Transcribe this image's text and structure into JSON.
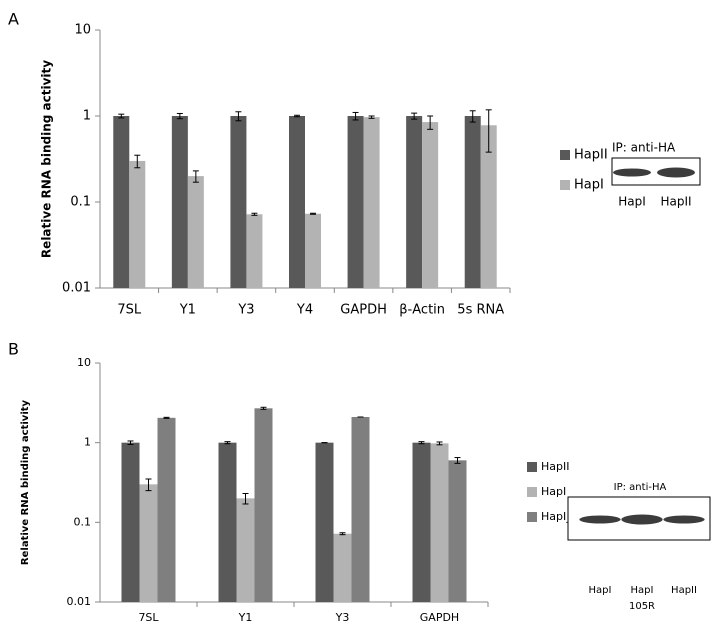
{
  "chart_data": [
    {
      "type": "bar",
      "panel_label": "A",
      "ylabel": "Relative RNA binding activity",
      "categories": [
        "7SL",
        "Y1",
        "Y3",
        "Y4",
        "GAPDH",
        "β-Actin",
        "5s RNA"
      ],
      "series": [
        {
          "name": "HapII",
          "color": "#595959",
          "values": [
            1,
            1,
            1,
            1,
            1,
            1,
            1
          ],
          "errors": [
            0.05,
            0.07,
            0.12,
            0.02,
            0.1,
            0.08,
            0.15
          ]
        },
        {
          "name": "HapI",
          "color": "#b3b3b3",
          "values": [
            0.3,
            0.2,
            0.072,
            0.073,
            0.97,
            0.85,
            0.78
          ],
          "errors": [
            0.05,
            0.03,
            0.002,
            0.001,
            0.03,
            0.15,
            0.4
          ]
        }
      ],
      "ylim": [
        0.01,
        10
      ],
      "yticks": [
        0.01,
        0.1,
        1,
        10
      ],
      "log_y": true,
      "grid": false,
      "blot": {
        "title": "IP: anti-HA",
        "lanes": [
          [
            "HapI"
          ],
          [
            "HapII"
          ]
        ]
      }
    },
    {
      "type": "bar",
      "panel_label": "B",
      "ylabel": "Relative RNA binding activity",
      "categories": [
        "7SL",
        "Y1",
        "Y3",
        "GAPDH"
      ],
      "series": [
        {
          "name": "HapII",
          "color": "#595959",
          "values": [
            1,
            1,
            1,
            1
          ],
          "errors": [
            0.05,
            0.03,
            0,
            0.03
          ]
        },
        {
          "name": "HapI",
          "color": "#b3b3b3",
          "values": [
            0.3,
            0.2,
            0.072,
            0.98
          ],
          "errors": [
            0.05,
            0.03,
            0.002,
            0.04
          ]
        },
        {
          "name": "HapI_105R",
          "color": "#7f7f7f",
          "values": [
            2.05,
            2.7,
            2.1,
            0.6
          ],
          "errors": [
            0.03,
            0.08,
            0,
            0.05
          ]
        }
      ],
      "ylim": [
        0.01,
        10
      ],
      "yticks": [
        0.01,
        0.1,
        1,
        10
      ],
      "log_y": true,
      "grid": false,
      "blot": {
        "title": "IP: anti-HA",
        "lanes": [
          [
            "HapI"
          ],
          [
            "HapI",
            "105R"
          ],
          [
            "HapII"
          ]
        ]
      }
    }
  ]
}
